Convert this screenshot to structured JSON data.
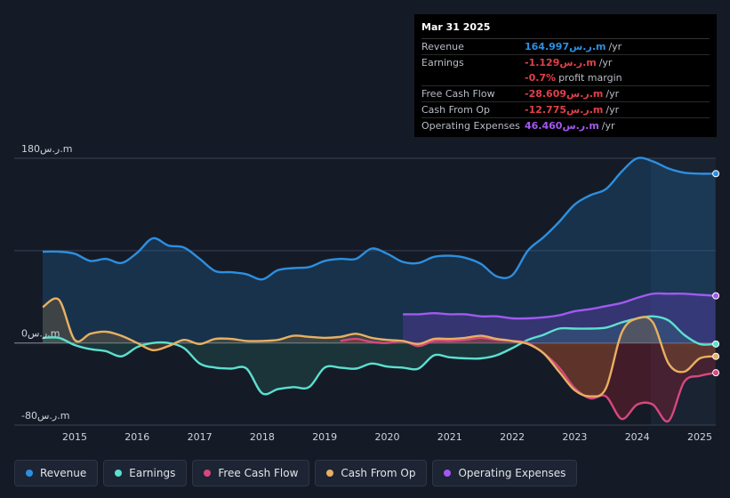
{
  "tooltip": {
    "date": "Mar 31 2025",
    "rows": [
      {
        "label": "Revenue",
        "value": "164.997ر.س.m",
        "unit": "/yr",
        "color": "#2d8fe0"
      },
      {
        "label": "Earnings",
        "value": "-1.129ر.س.m",
        "unit": "/yr",
        "color": "#e0404a"
      },
      {
        "label": "",
        "value": "-0.7%",
        "unit": "profit margin",
        "color": "#e0404a"
      },
      {
        "label": "Free Cash Flow",
        "value": "-28.609ر.س.m",
        "unit": "/yr",
        "color": "#e0404a"
      },
      {
        "label": "Cash From Op",
        "value": "-12.775ر.س.m",
        "unit": "/yr",
        "color": "#e0404a"
      },
      {
        "label": "Operating Expenses",
        "value": "46.460ر.س.m",
        "unit": "/yr",
        "color": "#a259f0"
      }
    ]
  },
  "legend": [
    {
      "label": "Revenue",
      "color": "#2d8fe0"
    },
    {
      "label": "Earnings",
      "color": "#5ce0d0"
    },
    {
      "label": "Free Cash Flow",
      "color": "#d6487e"
    },
    {
      "label": "Cash From Op",
      "color": "#e8b062"
    },
    {
      "label": "Operating Expenses",
      "color": "#a259f0"
    }
  ],
  "chart_data": {
    "type": "line",
    "title": "",
    "xlabel": "",
    "ylabel": "",
    "ylim": [
      -80,
      180
    ],
    "y_tick_labels": [
      {
        "value": 180,
        "label": "180ر.س.m"
      },
      {
        "value": 0,
        "label": "0ر.س.m"
      },
      {
        "value": -80,
        "label": "-80ر.س.m"
      }
    ],
    "xlim": [
      2014.5,
      2025.25
    ],
    "x_ticks": [
      "2015",
      "2016",
      "2017",
      "2018",
      "2019",
      "2020",
      "2021",
      "2022",
      "2023",
      "2024",
      "2025"
    ],
    "highlight_from": 2024.25,
    "series": [
      {
        "name": "Revenue",
        "color": "#2d8fe0",
        "fill": "area",
        "x": [
          2014.5,
          2014.75,
          2015.0,
          2015.25,
          2015.5,
          2015.75,
          2016.0,
          2016.25,
          2016.5,
          2016.75,
          2017.0,
          2017.25,
          2017.5,
          2017.75,
          2018.0,
          2018.25,
          2018.5,
          2018.75,
          2019.0,
          2019.25,
          2019.5,
          2019.75,
          2020.0,
          2020.25,
          2020.5,
          2020.75,
          2021.0,
          2021.25,
          2021.5,
          2021.75,
          2022.0,
          2022.25,
          2022.5,
          2022.75,
          2023.0,
          2023.25,
          2023.5,
          2023.75,
          2024.0,
          2024.25,
          2024.5,
          2024.75,
          2025.0,
          2025.25
        ],
        "values": [
          89,
          89,
          87,
          80,
          82,
          78,
          88,
          102,
          95,
          93,
          82,
          70,
          69,
          67,
          62,
          71,
          73,
          74,
          80,
          82,
          82,
          92,
          87,
          79,
          78,
          84,
          85,
          83,
          77,
          65,
          66,
          90,
          103,
          118,
          135,
          144,
          150,
          167,
          180,
          177,
          170,
          166,
          165,
          165
        ]
      },
      {
        "name": "Operating Expenses",
        "color": "#a259f0",
        "fill": "area",
        "x": [
          2020.25,
          2020.5,
          2020.75,
          2021.0,
          2021.25,
          2021.5,
          2021.75,
          2022.0,
          2022.25,
          2022.5,
          2022.75,
          2023.0,
          2023.25,
          2023.5,
          2023.75,
          2024.0,
          2024.25,
          2024.5,
          2024.75,
          2025.0,
          2025.25
        ],
        "values": [
          28,
          28,
          29,
          28,
          28,
          26,
          26,
          24,
          24,
          25,
          27,
          31,
          33,
          36,
          39,
          44,
          48,
          48,
          48,
          47,
          46
        ]
      },
      {
        "name": "Earnings",
        "color": "#5ce0d0",
        "fill": "area",
        "x": [
          2014.5,
          2014.75,
          2015.0,
          2015.25,
          2015.5,
          2015.75,
          2016.0,
          2016.25,
          2016.5,
          2016.75,
          2017.0,
          2017.25,
          2017.5,
          2017.75,
          2018.0,
          2018.25,
          2018.5,
          2018.75,
          2019.0,
          2019.25,
          2019.5,
          2019.75,
          2020.0,
          2020.25,
          2020.5,
          2020.75,
          2021.0,
          2021.25,
          2021.5,
          2021.75,
          2022.0,
          2022.25,
          2022.5,
          2022.75,
          2023.0,
          2023.25,
          2023.5,
          2023.75,
          2024.0,
          2024.25,
          2024.5,
          2024.75,
          2025.0,
          2025.25
        ],
        "values": [
          5,
          5,
          -2,
          -6,
          -8,
          -13,
          -4,
          0,
          0,
          -5,
          -20,
          -24,
          -25,
          -25,
          -49,
          -45,
          -43,
          -43,
          -24,
          -24,
          -25,
          -20,
          -23,
          -24,
          -25,
          -12,
          -14,
          -15,
          -15,
          -12,
          -5,
          3,
          8,
          14,
          14,
          14,
          15,
          20,
          24,
          26,
          22,
          8,
          -1,
          -1
        ]
      },
      {
        "name": "Free Cash Flow",
        "color": "#d6487e",
        "fill": "area",
        "x": [
          2019.25,
          2019.5,
          2019.75,
          2020.0,
          2020.25,
          2020.5,
          2020.75,
          2021.0,
          2021.25,
          2021.5,
          2021.75,
          2022.0,
          2022.25,
          2022.5,
          2022.75,
          2023.0,
          2023.25,
          2023.5,
          2023.75,
          2024.0,
          2024.25,
          2024.5,
          2024.75,
          2025.0,
          2025.25
        ],
        "values": [
          2,
          4,
          1,
          0,
          2,
          -3,
          2,
          2,
          3,
          5,
          3,
          2,
          0,
          -10,
          -24,
          -44,
          -54,
          -52,
          -74,
          -60,
          -60,
          -76,
          -38,
          -32,
          -29
        ]
      },
      {
        "name": "Cash From Op",
        "color": "#e8b062",
        "fill": "area",
        "x": [
          2014.5,
          2014.75,
          2015.0,
          2015.25,
          2015.5,
          2015.75,
          2016.0,
          2016.25,
          2016.5,
          2016.75,
          2017.0,
          2017.25,
          2017.5,
          2017.75,
          2018.0,
          2018.25,
          2018.5,
          2018.75,
          2019.0,
          2019.25,
          2019.5,
          2019.75,
          2020.0,
          2020.25,
          2020.5,
          2020.75,
          2021.0,
          2021.25,
          2021.5,
          2021.75,
          2022.0,
          2022.25,
          2022.5,
          2022.75,
          2023.0,
          2023.25,
          2023.5,
          2023.75,
          2024.0,
          2024.25,
          2024.5,
          2024.75,
          2025.0,
          2025.25
        ],
        "values": [
          35,
          42,
          3,
          9,
          11,
          7,
          0,
          -7,
          -3,
          3,
          -1,
          4,
          4,
          2,
          2,
          3,
          7,
          6,
          5,
          6,
          9,
          5,
          3,
          2,
          -1,
          4,
          4,
          5,
          7,
          4,
          2,
          -1,
          -10,
          -28,
          -46,
          -52,
          -44,
          10,
          24,
          20,
          -20,
          -28,
          -15,
          -13
        ]
      }
    ]
  }
}
